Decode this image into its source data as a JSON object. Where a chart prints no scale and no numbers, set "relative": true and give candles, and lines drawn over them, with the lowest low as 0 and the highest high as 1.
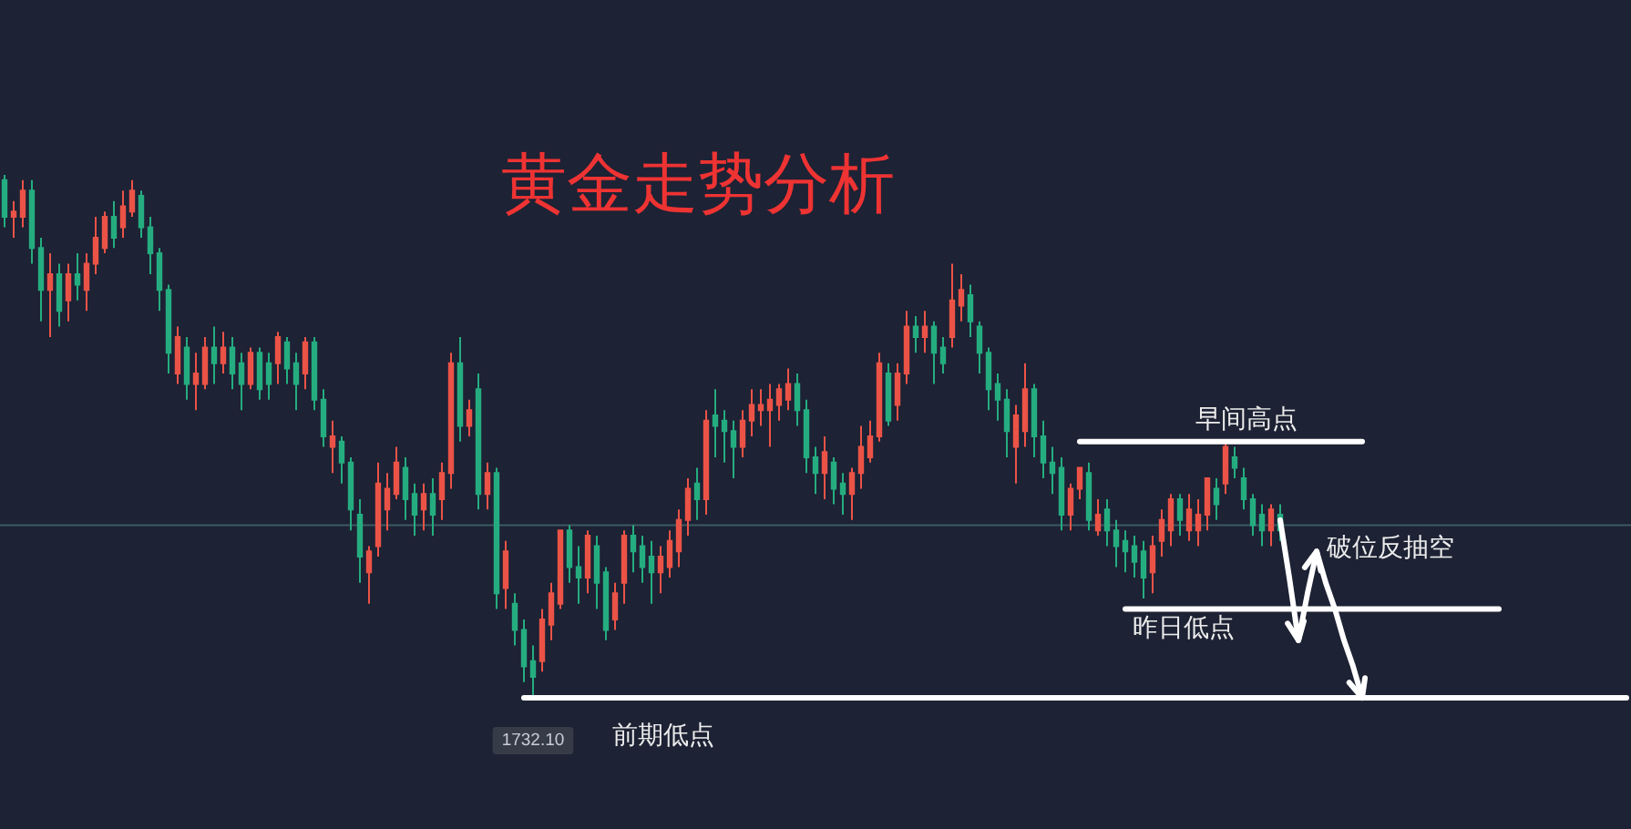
{
  "chart_data": {
    "type": "candlestick",
    "title": "黄金走势分析",
    "relative": true,
    "categories": [
      null,
      null,
      null,
      null,
      null,
      null,
      null,
      null,
      null,
      null,
      null,
      null,
      null,
      null,
      null,
      null,
      null,
      null,
      null,
      null,
      null,
      null,
      null,
      null,
      null,
      null,
      null,
      null,
      null,
      null,
      null,
      null,
      null,
      null,
      null,
      null,
      null,
      null,
      null,
      null,
      null,
      null,
      null,
      null,
      null,
      null,
      null,
      null,
      null,
      null,
      null,
      null,
      null,
      null,
      null,
      null,
      null,
      null,
      null,
      null,
      null,
      null,
      null,
      null,
      null,
      null,
      null,
      null,
      null,
      null,
      null,
      null,
      null,
      null,
      null,
      null,
      null,
      null,
      null,
      null,
      null,
      null,
      null,
      null,
      null,
      null,
      null,
      null,
      null,
      null,
      null,
      null,
      null,
      null,
      null,
      null,
      null,
      null,
      null,
      null,
      null,
      null,
      null,
      null,
      null,
      null,
      null,
      null,
      null,
      null,
      null,
      null,
      null,
      null,
      null,
      null,
      null,
      null,
      null,
      null,
      null,
      null,
      null,
      null,
      null,
      null,
      null,
      null,
      null,
      null,
      null,
      null,
      null,
      null,
      null,
      null,
      null,
      null,
      null,
      null,
      null,
      null,
      null,
      null,
      null,
      null,
      null,
      null,
      null,
      null,
      null,
      null,
      null,
      null,
      null,
      null,
      null,
      null,
      null,
      null,
      null,
      null,
      null,
      null,
      null,
      null,
      null,
      null,
      null,
      null,
      null,
      null,
      null,
      null,
      null,
      null,
      null,
      null,
      null
    ],
    "ohlc": [
      [
        0.99,
        1.0,
        0.9,
        0.92
      ],
      [
        0.92,
        0.95,
        0.88,
        0.93
      ],
      [
        0.92,
        0.99,
        0.9,
        0.97
      ],
      [
        0.97,
        0.99,
        0.83,
        0.86
      ],
      [
        0.86,
        0.88,
        0.72,
        0.78
      ],
      [
        0.78,
        0.85,
        0.69,
        0.81
      ],
      [
        0.81,
        0.83,
        0.71,
        0.74
      ],
      [
        0.76,
        0.83,
        0.72,
        0.81
      ],
      [
        0.81,
        0.85,
        0.76,
        0.79
      ],
      [
        0.78,
        0.85,
        0.74,
        0.83
      ],
      [
        0.83,
        0.92,
        0.81,
        0.88
      ],
      [
        0.86,
        0.93,
        0.85,
        0.92
      ],
      [
        0.92,
        0.95,
        0.86,
        0.88
      ],
      [
        0.9,
        0.97,
        0.88,
        0.94
      ],
      [
        0.93,
        0.99,
        0.92,
        0.97
      ],
      [
        0.96,
        0.97,
        0.88,
        0.9
      ],
      [
        0.9,
        0.92,
        0.81,
        0.85
      ],
      [
        0.85,
        0.86,
        0.74,
        0.78
      ],
      [
        0.78,
        0.79,
        0.62,
        0.66
      ],
      [
        0.62,
        0.71,
        0.6,
        0.69
      ],
      [
        0.67,
        0.69,
        0.57,
        0.6
      ],
      [
        0.6,
        0.66,
        0.55,
        0.62
      ],
      [
        0.6,
        0.69,
        0.59,
        0.67
      ],
      [
        0.67,
        0.71,
        0.6,
        0.64
      ],
      [
        0.64,
        0.7,
        0.62,
        0.67
      ],
      [
        0.67,
        0.69,
        0.59,
        0.62
      ],
      [
        0.64,
        0.66,
        0.55,
        0.6
      ],
      [
        0.6,
        0.67,
        0.59,
        0.66
      ],
      [
        0.66,
        0.67,
        0.57,
        0.59
      ],
      [
        0.64,
        0.66,
        0.57,
        0.6
      ],
      [
        0.64,
        0.7,
        0.6,
        0.69
      ],
      [
        0.68,
        0.69,
        0.6,
        0.63
      ],
      [
        0.64,
        0.66,
        0.55,
        0.6
      ],
      [
        0.62,
        0.69,
        0.59,
        0.68
      ],
      [
        0.68,
        0.69,
        0.55,
        0.57
      ],
      [
        0.57,
        0.59,
        0.48,
        0.5
      ],
      [
        0.48,
        0.53,
        0.43,
        0.5
      ],
      [
        0.49,
        0.5,
        0.41,
        0.45
      ],
      [
        0.45,
        0.46,
        0.32,
        0.36
      ],
      [
        0.35,
        0.38,
        0.22,
        0.27
      ],
      [
        0.24,
        0.29,
        0.18,
        0.28
      ],
      [
        0.29,
        0.45,
        0.27,
        0.41
      ],
      [
        0.36,
        0.43,
        0.32,
        0.4
      ],
      [
        0.39,
        0.48,
        0.38,
        0.45
      ],
      [
        0.44,
        0.46,
        0.34,
        0.38
      ],
      [
        0.39,
        0.41,
        0.31,
        0.35
      ],
      [
        0.36,
        0.41,
        0.32,
        0.39
      ],
      [
        0.39,
        0.42,
        0.31,
        0.35
      ],
      [
        0.38,
        0.45,
        0.34,
        0.43
      ],
      [
        0.43,
        0.66,
        0.4,
        0.64
      ],
      [
        0.64,
        0.69,
        0.49,
        0.52
      ],
      [
        0.52,
        0.57,
        0.5,
        0.55
      ],
      [
        0.59,
        0.62,
        0.36,
        0.39
      ],
      [
        0.39,
        0.45,
        0.36,
        0.43
      ],
      [
        0.43,
        0.44,
        0.17,
        0.2
      ],
      [
        0.21,
        0.3,
        0.17,
        0.28
      ],
      [
        0.18,
        0.2,
        0.1,
        0.13
      ],
      [
        0.13,
        0.15,
        0.03,
        0.06
      ],
      [
        0.07,
        0.1,
        0.0,
        0.04
      ],
      [
        0.07,
        0.17,
        0.05,
        0.15
      ],
      [
        0.14,
        0.22,
        0.11,
        0.2
      ],
      [
        0.18,
        0.32,
        0.17,
        0.32
      ],
      [
        0.32,
        0.33,
        0.22,
        0.25
      ],
      [
        0.25,
        0.29,
        0.18,
        0.23
      ],
      [
        0.23,
        0.32,
        0.2,
        0.31
      ],
      [
        0.29,
        0.31,
        0.17,
        0.22
      ],
      [
        0.24,
        0.25,
        0.11,
        0.13
      ],
      [
        0.15,
        0.22,
        0.13,
        0.2
      ],
      [
        0.22,
        0.32,
        0.18,
        0.31
      ],
      [
        0.31,
        0.33,
        0.24,
        0.28
      ],
      [
        0.29,
        0.31,
        0.22,
        0.25
      ],
      [
        0.27,
        0.3,
        0.18,
        0.24
      ],
      [
        0.24,
        0.29,
        0.2,
        0.27
      ],
      [
        0.25,
        0.32,
        0.23,
        0.3
      ],
      [
        0.28,
        0.36,
        0.25,
        0.34
      ],
      [
        0.34,
        0.42,
        0.31,
        0.4
      ],
      [
        0.41,
        0.44,
        0.34,
        0.38
      ],
      [
        0.38,
        0.55,
        0.35,
        0.53
      ],
      [
        0.54,
        0.59,
        0.46,
        0.52
      ],
      [
        0.53,
        0.55,
        0.45,
        0.51
      ],
      [
        0.51,
        0.53,
        0.42,
        0.48
      ],
      [
        0.48,
        0.55,
        0.46,
        0.53
      ],
      [
        0.53,
        0.59,
        0.5,
        0.56
      ],
      [
        0.55,
        0.59,
        0.52,
        0.56
      ],
      [
        0.55,
        0.6,
        0.48,
        0.57
      ],
      [
        0.56,
        0.6,
        0.53,
        0.59
      ],
      [
        0.57,
        0.63,
        0.55,
        0.6
      ],
      [
        0.6,
        0.62,
        0.52,
        0.55
      ],
      [
        0.55,
        0.57,
        0.43,
        0.46
      ],
      [
        0.46,
        0.48,
        0.39,
        0.43
      ],
      [
        0.43,
        0.5,
        0.38,
        0.47
      ],
      [
        0.45,
        0.46,
        0.37,
        0.4
      ],
      [
        0.41,
        0.43,
        0.35,
        0.39
      ],
      [
        0.39,
        0.44,
        0.34,
        0.43
      ],
      [
        0.43,
        0.52,
        0.4,
        0.48
      ],
      [
        0.46,
        0.53,
        0.45,
        0.5
      ],
      [
        0.5,
        0.66,
        0.49,
        0.64
      ],
      [
        0.62,
        0.64,
        0.52,
        0.53
      ],
      [
        0.56,
        0.64,
        0.53,
        0.62
      ],
      [
        0.62,
        0.74,
        0.6,
        0.71
      ],
      [
        0.71,
        0.73,
        0.66,
        0.69
      ],
      [
        0.69,
        0.74,
        0.66,
        0.71
      ],
      [
        0.71,
        0.72,
        0.6,
        0.66
      ],
      [
        0.67,
        0.69,
        0.62,
        0.64
      ],
      [
        0.69,
        0.83,
        0.67,
        0.76
      ],
      [
        0.75,
        0.81,
        0.72,
        0.78
      ],
      [
        0.77,
        0.79,
        0.69,
        0.72
      ],
      [
        0.71,
        0.72,
        0.62,
        0.66
      ],
      [
        0.66,
        0.67,
        0.55,
        0.59
      ],
      [
        0.6,
        0.62,
        0.53,
        0.57
      ],
      [
        0.57,
        0.59,
        0.46,
        0.51
      ],
      [
        0.48,
        0.56,
        0.41,
        0.54
      ],
      [
        0.51,
        0.64,
        0.48,
        0.59
      ],
      [
        0.59,
        0.6,
        0.46,
        0.5
      ],
      [
        0.5,
        0.53,
        0.42,
        0.45
      ],
      [
        0.45,
        0.48,
        0.39,
        0.43
      ],
      [
        0.44,
        0.46,
        0.32,
        0.35
      ],
      [
        0.35,
        0.41,
        0.32,
        0.4
      ],
      [
        0.4,
        0.44,
        0.38,
        0.44
      ],
      [
        0.43,
        0.45,
        0.32,
        0.34
      ],
      [
        0.32,
        0.38,
        0.31,
        0.35
      ],
      [
        0.36,
        0.38,
        0.29,
        0.32
      ],
      [
        0.32,
        0.34,
        0.25,
        0.29
      ],
      [
        0.3,
        0.32,
        0.24,
        0.28
      ],
      [
        0.29,
        0.31,
        0.23,
        0.26
      ],
      [
        0.28,
        0.3,
        0.19,
        0.23
      ],
      [
        0.24,
        0.31,
        0.2,
        0.29
      ],
      [
        0.3,
        0.36,
        0.27,
        0.34
      ],
      [
        0.32,
        0.39,
        0.29,
        0.38
      ],
      [
        0.38,
        0.39,
        0.31,
        0.34
      ],
      [
        0.32,
        0.39,
        0.3,
        0.36
      ],
      [
        0.32,
        0.38,
        0.29,
        0.35
      ],
      [
        0.35,
        0.42,
        0.32,
        0.42
      ],
      [
        0.4,
        0.42,
        0.34,
        0.37
      ],
      [
        0.41,
        0.49,
        0.39,
        0.48
      ],
      [
        0.46,
        0.48,
        0.42,
        0.44
      ],
      [
        0.42,
        0.44,
        0.36,
        0.38
      ],
      [
        0.38,
        0.39,
        0.31,
        0.33
      ],
      [
        0.35,
        0.37,
        0.29,
        0.32
      ],
      [
        0.32,
        0.37,
        0.29,
        0.36
      ],
      [
        0.35,
        0.37,
        0.3,
        0.32
      ],
      null,
      null,
      null,
      null,
      null,
      null,
      null,
      null,
      null,
      null,
      null,
      null,
      null,
      null,
      null,
      null,
      null,
      null,
      null,
      null,
      null,
      null,
      null,
      null,
      null,
      null,
      null,
      null,
      null,
      null,
      null,
      null,
      null,
      null,
      null,
      null,
      null,
      null
    ],
    "colors": [
      "#25ad80",
      "#eb5347",
      "#eb5347",
      "#25ad80",
      "#25ad80",
      "#eb5347",
      "#25ad80",
      "#eb5347",
      "#25ad80",
      "#eb5347",
      "#eb5347",
      "#eb5347",
      "#25ad80",
      "#eb5347",
      "#eb5347",
      "#25ad80",
      "#25ad80",
      "#25ad80",
      "#25ad80",
      "#eb5347",
      "#25ad80",
      "#eb5347",
      "#eb5347",
      "#25ad80",
      "#eb5347",
      "#25ad80",
      "#25ad80",
      "#eb5347",
      "#25ad80",
      "#25ad80",
      "#eb5347",
      "#25ad80",
      "#25ad80",
      "#eb5347",
      "#25ad80",
      "#25ad80",
      "#eb5347",
      "#25ad80",
      "#25ad80",
      "#25ad80",
      "#eb5347",
      "#eb5347",
      "#eb5347",
      "#eb5347",
      "#25ad80",
      "#25ad80",
      "#eb5347",
      "#25ad80",
      "#eb5347",
      "#eb5347",
      "#25ad80",
      "#eb5347",
      "#25ad80",
      "#eb5347",
      "#25ad80",
      "#eb5347",
      "#25ad80",
      "#25ad80",
      "#25ad80",
      "#eb5347",
      "#eb5347",
      "#eb5347",
      "#25ad80",
      "#25ad80",
      "#eb5347",
      "#25ad80",
      "#25ad80",
      "#eb5347",
      "#eb5347",
      "#25ad80",
      "#25ad80",
      "#25ad80",
      "#eb5347",
      "#eb5347",
      "#eb5347",
      "#eb5347",
      "#25ad80",
      "#eb5347",
      "#25ad80",
      "#25ad80",
      "#25ad80",
      "#eb5347",
      "#eb5347",
      "#eb5347",
      "#eb5347",
      "#eb5347",
      "#eb5347",
      "#25ad80",
      "#25ad80",
      "#25ad80",
      "#eb5347",
      "#25ad80",
      "#25ad80",
      "#eb5347",
      "#eb5347",
      "#eb5347",
      "#eb5347",
      "#25ad80",
      "#eb5347",
      "#eb5347",
      "#25ad80",
      "#eb5347",
      "#25ad80",
      "#25ad80",
      "#eb5347",
      "#eb5347",
      "#25ad80",
      "#25ad80",
      "#25ad80",
      "#25ad80",
      "#25ad80",
      "#eb5347",
      "#eb5347",
      "#25ad80",
      "#25ad80",
      "#25ad80",
      "#25ad80",
      "#eb5347",
      "#eb5347",
      "#25ad80",
      "#eb5347",
      "#25ad80",
      "#25ad80",
      "#25ad80",
      "#25ad80",
      "#25ad80",
      "#eb5347",
      "#eb5347",
      "#eb5347",
      "#25ad80",
      "#eb5347",
      "#eb5347",
      "#eb5347",
      "#25ad80",
      "#eb5347",
      "#25ad80",
      "#25ad80",
      "#25ad80",
      "#25ad80",
      "#eb5347",
      "#25ad80",
      null,
      null,
      null,
      null,
      null,
      null,
      null,
      null,
      null,
      null,
      null,
      null,
      null,
      null,
      null,
      null,
      null,
      null,
      null,
      null,
      null,
      null,
      null,
      null,
      null,
      null,
      null,
      null,
      null,
      null,
      null,
      null,
      null,
      null,
      null,
      null,
      null,
      null
    ],
    "series": [
      {
        "type": "line",
        "name": "早间高点",
        "color": "#ffffff",
        "values": [
          null,
          null,
          null,
          null,
          null,
          null,
          null,
          null,
          null,
          null,
          null,
          null,
          null,
          null,
          null,
          null,
          null,
          null,
          null,
          null,
          null,
          null,
          null,
          null,
          null,
          null,
          null,
          null,
          null,
          null,
          null,
          null,
          null,
          null,
          null,
          null,
          null,
          null,
          null,
          null,
          null,
          null,
          null,
          null,
          null,
          null,
          null,
          null,
          null,
          null,
          null,
          null,
          null,
          null,
          null,
          null,
          null,
          null,
          null,
          null,
          null,
          null,
          null,
          null,
          null,
          null,
          null,
          null,
          null,
          null,
          null,
          null,
          null,
          null,
          null,
          null,
          null,
          null,
          null,
          null,
          null,
          null,
          null,
          null,
          null,
          null,
          null,
          null,
          null,
          null,
          null,
          null,
          null,
          null,
          null,
          null,
          null,
          null,
          null,
          null,
          null,
          null,
          null,
          null,
          null,
          null,
          null,
          null,
          null,
          null,
          null,
          null,
          null,
          null,
          null,
          null,
          null,
          null,
          0.49,
          0.49,
          0.49,
          0.49,
          0.49,
          0.49,
          0.49,
          0.49,
          0.49,
          0.49,
          0.49,
          0.49,
          0.49,
          0.49,
          0.49,
          0.49,
          0.49,
          0.49,
          0.49,
          0.49,
          0.49,
          0.49,
          0.49,
          0.49,
          0.49,
          0.49,
          0.49,
          0.49,
          0.49,
          0.49,
          0.49,
          0.49,
          null,
          null,
          null,
          null,
          null,
          null,
          null,
          null,
          null,
          null,
          null,
          null,
          null,
          null,
          null,
          null,
          null,
          null,
          null,
          null,
          null,
          null,
          null,
          null,
          null,
          null,
          null,
          null,
          null
        ]
      },
      {
        "type": "line",
        "name": "昨日低点",
        "color": "#ffffff",
        "values": [
          null,
          null,
          null,
          null,
          null,
          null,
          null,
          null,
          null,
          null,
          null,
          null,
          null,
          null,
          null,
          null,
          null,
          null,
          null,
          null,
          null,
          null,
          null,
          null,
          null,
          null,
          null,
          null,
          null,
          null,
          null,
          null,
          null,
          null,
          null,
          null,
          null,
          null,
          null,
          null,
          null,
          null,
          null,
          null,
          null,
          null,
          null,
          null,
          null,
          null,
          null,
          null,
          null,
          null,
          null,
          null,
          null,
          null,
          null,
          null,
          null,
          null,
          null,
          null,
          null,
          null,
          null,
          null,
          null,
          null,
          null,
          null,
          null,
          null,
          null,
          null,
          null,
          null,
          null,
          null,
          null,
          null,
          null,
          null,
          null,
          null,
          null,
          null,
          null,
          null,
          null,
          null,
          null,
          null,
          null,
          null,
          null,
          null,
          null,
          null,
          null,
          null,
          null,
          null,
          null,
          null,
          null,
          null,
          null,
          null,
          null,
          null,
          null,
          null,
          null,
          null,
          null,
          null,
          null,
          null,
          null,
          null,
          null,
          0.17,
          0.17,
          0.17,
          0.17,
          0.17,
          0.17,
          0.17,
          0.17,
          0.17,
          0.17,
          0.17,
          0.17,
          0.17,
          0.17,
          0.17,
          0.17,
          0.17,
          0.17,
          0.17,
          0.17,
          0.17,
          0.17,
          0.17,
          0.17,
          0.17,
          0.17,
          0.17,
          0.17,
          0.17,
          0.17,
          0.17,
          0.17,
          0.17,
          0.17,
          0.17,
          0.17,
          0.17,
          0.17,
          0.17,
          0.17,
          0.17,
          0.17,
          null,
          null,
          null,
          null,
          null,
          null,
          null,
          null,
          null,
          null,
          null,
          null,
          null,
          null
        ]
      },
      {
        "type": "line",
        "name": "前期低点",
        "color": "#ffffff",
        "values": [
          null,
          null,
          null,
          null,
          null,
          null,
          null,
          null,
          null,
          null,
          null,
          null,
          null,
          null,
          null,
          null,
          null,
          null,
          null,
          null,
          null,
          null,
          null,
          null,
          null,
          null,
          null,
          null,
          null,
          null,
          null,
          null,
          null,
          null,
          null,
          null,
          null,
          null,
          null,
          null,
          null,
          null,
          null,
          null,
          null,
          null,
          null,
          null,
          null,
          null,
          null,
          null,
          null,
          null,
          null,
          null,
          null,
          0,
          0,
          0,
          0,
          0,
          0,
          0,
          0,
          0,
          0,
          0,
          0,
          0,
          0,
          0,
          0,
          0,
          0,
          0,
          0,
          0,
          0,
          0,
          0,
          0,
          0,
          0,
          0,
          0,
          0,
          0,
          0,
          0,
          0,
          0,
          0,
          0,
          0,
          0,
          0,
          0,
          0,
          0,
          0,
          0,
          0,
          0,
          0,
          0,
          0,
          0,
          0,
          0,
          0,
          0,
          0,
          0,
          0,
          0,
          0,
          0,
          0,
          0,
          0,
          0,
          0,
          0,
          0,
          0,
          0,
          0,
          0,
          0,
          0,
          0,
          0,
          0,
          0,
          0,
          0,
          0,
          0,
          0,
          0,
          0,
          0,
          0,
          0,
          0,
          0,
          0,
          0,
          0,
          0,
          0,
          0,
          0,
          0,
          0,
          0,
          0,
          0,
          0,
          0,
          0,
          0,
          0,
          0,
          0,
          0,
          0,
          0,
          0,
          0,
          0,
          0,
          0,
          0,
          0,
          0,
          0,
          0
        ]
      },
      {
        "type": "line",
        "color": "#ffffff",
        "values": [
          null,
          null,
          null,
          null,
          null,
          null,
          null,
          null,
          null,
          null,
          null,
          null,
          null,
          null,
          null,
          null,
          null,
          null,
          null,
          null,
          null,
          null,
          null,
          null,
          null,
          null,
          null,
          null,
          null,
          null,
          null,
          null,
          null,
          null,
          null,
          null,
          null,
          null,
          null,
          null,
          null,
          null,
          null,
          null,
          null,
          null,
          null,
          null,
          null,
          null,
          null,
          null,
          null,
          null,
          null,
          null,
          null,
          null,
          null,
          null,
          null,
          null,
          null,
          null,
          null,
          null,
          null,
          null,
          null,
          null,
          null,
          null,
          null,
          null,
          null,
          null,
          null,
          null,
          null,
          null,
          null,
          null,
          null,
          null,
          null,
          null,
          null,
          null,
          null,
          null,
          null,
          null,
          null,
          null,
          null,
          null,
          null,
          null,
          null,
          null,
          null,
          null,
          null,
          null,
          null,
          null,
          null,
          null,
          null,
          null,
          null,
          null,
          null,
          null,
          null,
          null,
          null,
          null,
          null,
          null,
          null,
          null,
          null,
          null,
          null,
          null,
          null,
          null,
          null,
          null,
          null,
          null,
          null,
          null,
          null,
          null,
          null,
          null,
          null,
          null,
          0.34,
          0.23,
          0.11,
          0.2,
          0.28,
          0.22,
          0.17,
          0.11,
          0.06,
          0,
          null,
          null,
          null,
          null,
          null,
          null,
          null,
          null,
          null,
          null,
          null,
          null,
          null,
          null,
          null,
          null,
          null,
          null,
          null,
          null,
          null,
          null,
          null,
          null,
          null,
          null,
          null,
          null,
          null
        ]
      }
    ],
    "ref_lines": [
      {
        "axis": "y",
        "value": 0.33,
        "color": "#3c5a62"
      }
    ],
    "annotations": [
      "破位反抽空",
      "1732.10"
    ]
  }
}
